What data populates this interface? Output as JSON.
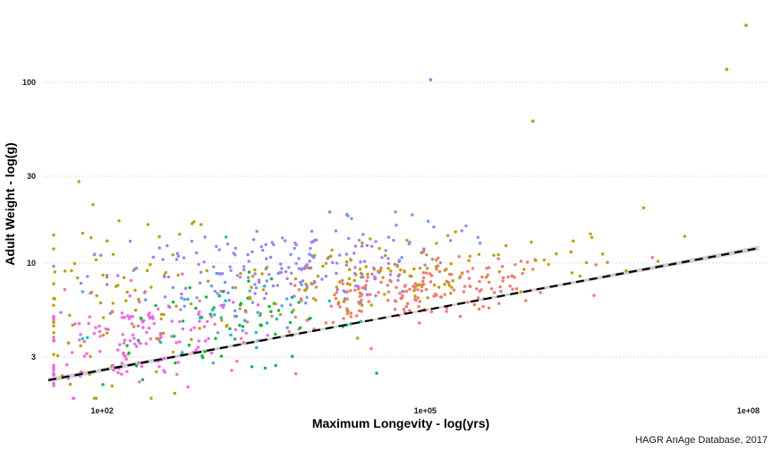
{
  "chart_data": {
    "type": "scatter",
    "title": "",
    "xlabel": "Maximum Longevity - log(yrs)",
    "ylabel": "Adult Weight - log(g)",
    "caption": "HAGR AnAge Database, 2017",
    "x_scale": "log10",
    "y_scale": "log10",
    "xlim": [
      1.45,
      8.18
    ],
    "ylim": [
      1.66,
      2.42
    ],
    "x_ticks": [
      {
        "value": 2,
        "label": "1e+02"
      },
      {
        "value": 5,
        "label": "1e+05"
      },
      {
        "value": 8,
        "label": "1e+08"
      }
    ],
    "y_ticks": [
      {
        "value": 3,
        "label": "3"
      },
      {
        "value": 10,
        "label": "10"
      },
      {
        "value": 30,
        "label": "30"
      },
      {
        "value": 100,
        "label": "100"
      }
    ],
    "grid": "horizontal dotted",
    "legend": "none",
    "trend": {
      "method": "linear fit on log scale with confidence band",
      "x_start": 1.5,
      "y_start": 1.7,
      "x_end": 8.1,
      "y_end": 1.955,
      "band_halfwidth_start": 0.0042,
      "band_halfwidth_mid": 0.0016,
      "band_halfwidth_end": 0.0045,
      "line_color": "#000000",
      "band_color": "#bdbdbd"
    },
    "series": [
      {
        "color": "#b79f00",
        "cluster": {
          "cx": 2.1,
          "cy": 1.84,
          "sx": 0.5,
          "sy": 0.1,
          "n": 85
        }
      },
      {
        "color": "#f564e3",
        "cluster": {
          "cx": 2.3,
          "cy": 1.78,
          "sx": 0.55,
          "sy": 0.05,
          "n": 150
        }
      },
      {
        "color": "#619cff",
        "cluster": {
          "cx": 3.7,
          "cy": 1.9,
          "sx": 0.65,
          "sy": 0.045,
          "n": 55
        }
      },
      {
        "color": "#00ba38",
        "cluster": {
          "cx": 3.2,
          "cy": 1.8,
          "sx": 0.6,
          "sy": 0.045,
          "n": 60
        }
      },
      {
        "color": "#00bfc4",
        "cluster": {
          "cx": 3.5,
          "cy": 1.82,
          "sx": 0.8,
          "sy": 0.05,
          "n": 25
        }
      },
      {
        "color": "#f8766d",
        "cluster": {
          "cx": 4.9,
          "cy": 1.87,
          "sx": 0.7,
          "sy": 0.025,
          "n": 190
        }
      },
      {
        "color": "#c49a00",
        "cluster": {
          "cx": 4.6,
          "cy": 1.9,
          "sx": 1.2,
          "sy": 0.04,
          "n": 140
        }
      },
      {
        "color": "#9f7ff5",
        "cluster": {
          "cx": 3.6,
          "cy": 1.92,
          "sx": 0.8,
          "sy": 0.04,
          "n": 170
        }
      }
    ],
    "highlighted_points": [
      {
        "x": 7.98,
        "y": 2.385,
        "color": "#c49a00"
      },
      {
        "x": 5.05,
        "y": 2.28,
        "color": "#9f7ff5"
      },
      {
        "x": 1.55,
        "y": 1.71,
        "color": "#f564e3"
      },
      {
        "x": 6.0,
        "y": 2.2,
        "color": "#b79f00"
      },
      {
        "x": 7.8,
        "y": 2.3,
        "color": "#c49a00"
      }
    ]
  }
}
